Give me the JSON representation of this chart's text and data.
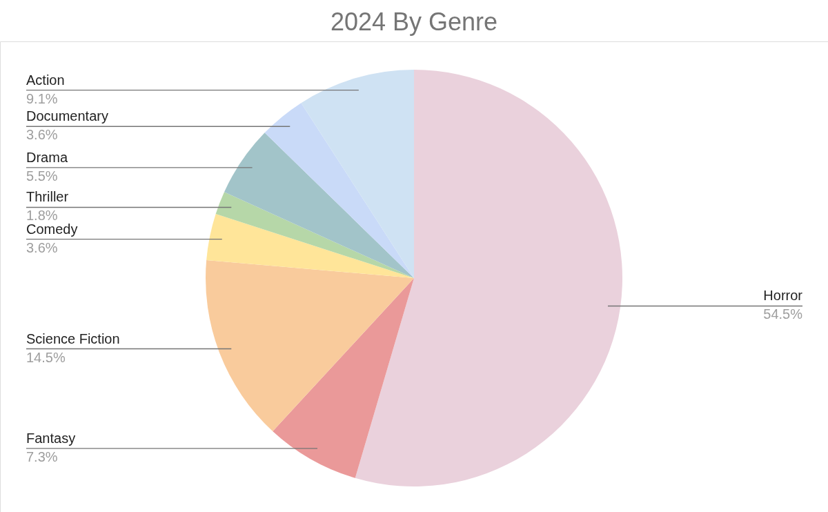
{
  "chart_data": {
    "type": "pie",
    "title": "2024 By Genre",
    "categories": [
      "Horror",
      "Fantasy",
      "Science Fiction",
      "Comedy",
      "Thriller",
      "Drama",
      "Documentary",
      "Action"
    ],
    "values": [
      54.5,
      7.3,
      14.5,
      3.6,
      1.8,
      5.5,
      3.6,
      9.1
    ],
    "value_labels": [
      "54.5%",
      "7.3%",
      "14.5%",
      "3.6%",
      "1.8%",
      "5.5%",
      "3.6%",
      "9.1%"
    ],
    "colors": [
      "#ead1dc",
      "#ea9999",
      "#f9cb9c",
      "#ffe599",
      "#b6d7a8",
      "#a2c4c9",
      "#c9daf8",
      "#cfe2f3"
    ]
  }
}
